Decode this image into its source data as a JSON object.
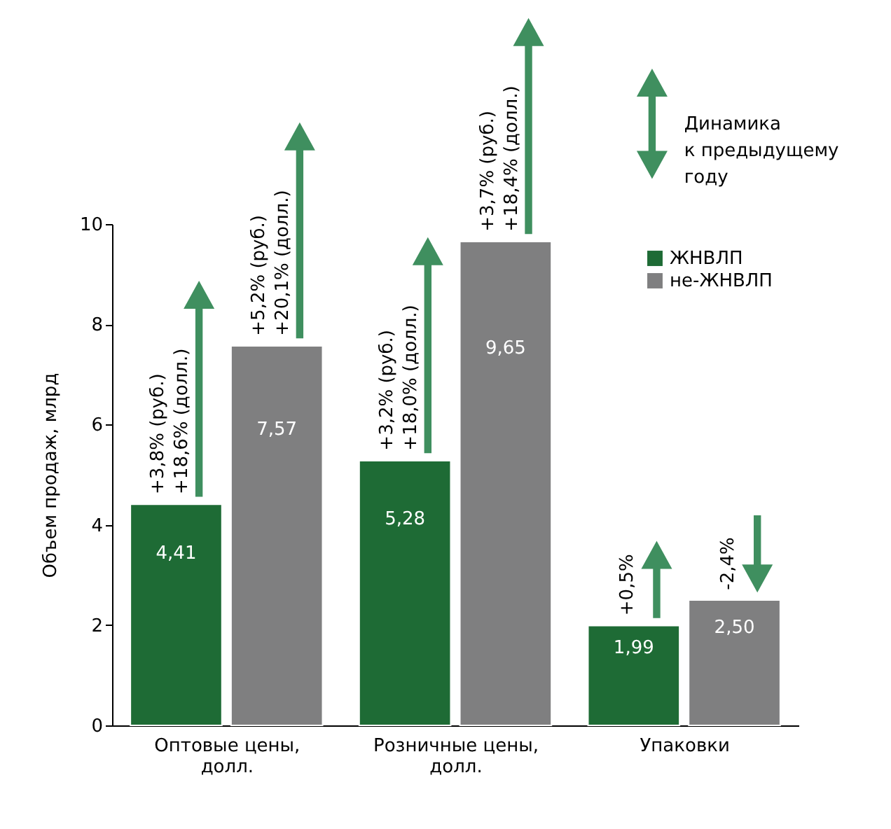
{
  "chart_data": {
    "type": "bar",
    "ylabel": "Объем продаж, млрд",
    "categories": [
      "Оптовые цены, долл.",
      "Розничные цены, долл.",
      "Упаковки"
    ],
    "series": [
      {
        "name": "ЖНВЛП",
        "color": "#1e6b35",
        "values": [
          4.41,
          5.28,
          1.99
        ],
        "value_labels": [
          "4,41",
          "5,28",
          "1,99"
        ]
      },
      {
        "name": "не-ЖНВЛП",
        "color": "#7f7f80",
        "values": [
          7.57,
          9.65,
          2.5
        ],
        "value_labels": [
          "7,57",
          "9,65",
          "2,50"
        ]
      }
    ],
    "ylim": [
      0,
      10
    ],
    "yticks": [
      0,
      2,
      4,
      6,
      8,
      10
    ],
    "grid": false,
    "legend": "top right",
    "annotations": [
      {
        "text": "+3,8% (руб.)\n+18,6% (долл.)",
        "x": "Оптовые цены, долл.",
        "y": 4.41
      },
      {
        "text": "+5,2% (руб.)\n+20,1% (долл.)",
        "x": "Оптовые цены, долл.",
        "y": 7.57
      },
      {
        "text": "+3,2% (руб.)\n+18,0% (долл.)",
        "x": "Розничные цены, долл.",
        "y": 5.28
      },
      {
        "text": "+3,7% (руб.)\n+18,4% (долл.)",
        "x": "Розничные цены, долл.",
        "y": 9.65
      },
      {
        "text": "+0,5%",
        "x": "Упаковки",
        "y": 1.99
      },
      {
        "text": "-2,4%",
        "x": "Упаковки",
        "y": 2.5
      },
      "Динамика\nк предыдущему\nгоду"
    ]
  }
}
